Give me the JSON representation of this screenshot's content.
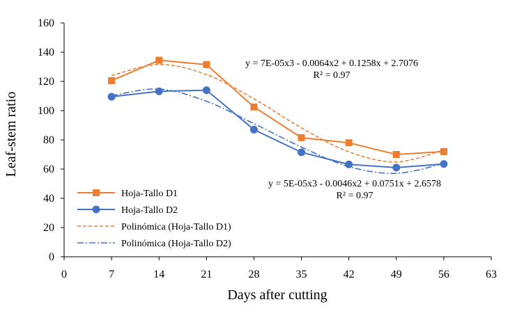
{
  "chart_data": {
    "type": "line",
    "xlabel": "Days after cutting",
    "ylabel": "Leaf-stem ratio",
    "xlim": [
      0,
      63
    ],
    "ylim": [
      0,
      160
    ],
    "x_ticks": [
      0,
      7,
      14,
      21,
      28,
      35,
      42,
      49,
      56,
      63
    ],
    "y_ticks": [
      0,
      20,
      40,
      60,
      80,
      100,
      120,
      140,
      160
    ],
    "grid": false,
    "legend_position": "bottom-left",
    "x": [
      7,
      14,
      21,
      28,
      35,
      42,
      49,
      56
    ],
    "series": [
      {
        "name": "Hoja-Tallo D1",
        "style": "line-marker",
        "marker": "square",
        "color": "#ED7D31",
        "values": [
          120.5,
          134.5,
          131.5,
          102.5,
          81.5,
          78,
          70,
          72
        ]
      },
      {
        "name": "Hoja-Tallo D2",
        "style": "line-marker",
        "marker": "circle",
        "color": "#4472C4",
        "values": [
          109.5,
          113.2,
          114,
          87,
          71.5,
          63.2,
          61,
          63.5
        ]
      },
      {
        "name": "Polinómica (Hoja-Tallo D1)",
        "style": "dashed",
        "color": "#ED7D31",
        "values": [
          124,
          131.6,
          124.7,
          108.1,
          88.2,
          71.8,
          64.9,
          73.1
        ]
      },
      {
        "name": "Polinómica (Hoja-Tallo D2)",
        "style": "dash-dot",
        "color": "#4472C4",
        "values": [
          110.2,
          114.8,
          106.4,
          91.1,
          75.1,
          61.7,
          57.1,
          63.8
        ]
      }
    ],
    "annotations": [
      {
        "id": "eq1",
        "equation": "y = 7E-05x3 - 0.0064x2 + 0.1258x + 2.7076",
        "r2": "R² = 0.97"
      },
      {
        "id": "eq2",
        "equation": "y = 5E-05x3 - 0.0046x2 + 0.0751x + 2.6578",
        "r2": "R² = 0.97"
      }
    ]
  }
}
